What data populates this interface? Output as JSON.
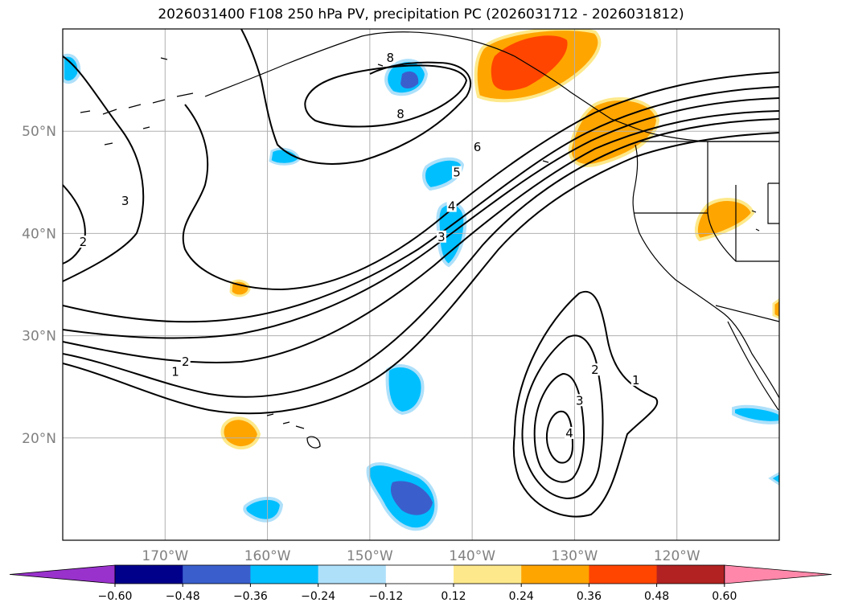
{
  "title": "2026031400 F108 250 hPa PV, precipitation PC (2026031712 - 2026031812)",
  "map": {
    "lon_range": [
      -180,
      -110
    ],
    "lat_range": [
      10,
      60
    ],
    "lat_ticks": [
      {
        "value": 20,
        "label": "20°N"
      },
      {
        "value": 30,
        "label": "30°N"
      },
      {
        "value": 40,
        "label": "40°N"
      },
      {
        "value": 50,
        "label": "50°N"
      }
    ],
    "lon_ticks": [
      {
        "value": -170,
        "label": "170°W"
      },
      {
        "value": -160,
        "label": "160°W"
      },
      {
        "value": -150,
        "label": "150°W"
      },
      {
        "value": -140,
        "label": "140°W"
      },
      {
        "value": -130,
        "label": "130°W"
      },
      {
        "value": -120,
        "label": "120°W"
      }
    ],
    "grid": true,
    "contour_field": "250 hPa PV",
    "contour_labels": [
      {
        "text": "8",
        "lon": -148,
        "lat": 57
      },
      {
        "text": "8",
        "lon": -147,
        "lat": 51.5
      },
      {
        "text": "6",
        "lon": -139.5,
        "lat": 48.3
      },
      {
        "text": "5",
        "lon": -141.5,
        "lat": 45.8
      },
      {
        "text": "4",
        "lon": -142,
        "lat": 42.5
      },
      {
        "text": "3",
        "lon": -143,
        "lat": 39.5
      },
      {
        "text": "3",
        "lon": -173.9,
        "lat": 43
      },
      {
        "text": "2",
        "lon": -178,
        "lat": 39
      },
      {
        "text": "2",
        "lon": -168,
        "lat": 27.3
      },
      {
        "text": "1",
        "lon": -169,
        "lat": 26.3
      },
      {
        "text": "2",
        "lon": -128,
        "lat": 26.5
      },
      {
        "text": "3",
        "lon": -129.5,
        "lat": 23.5
      },
      {
        "text": "4",
        "lon": -130.5,
        "lat": 20.3
      },
      {
        "text": "1",
        "lon": -124,
        "lat": 25.5
      }
    ],
    "shaded_regions": [
      {
        "name": "alaska-panhandle",
        "level": 0.36
      },
      {
        "name": "pacific-northwest",
        "level": 0.24
      },
      {
        "name": "great-basin",
        "level": 0.24
      },
      {
        "name": "hawaii-north",
        "level": 0.24
      },
      {
        "name": "gulf-alaska",
        "level": -0.36
      },
      {
        "name": "central-pacific-north",
        "level": -0.24
      },
      {
        "name": "trough-axis",
        "level": -0.24
      },
      {
        "name": "subtropics",
        "level": -0.24
      },
      {
        "name": "south-pacific-a",
        "level": -0.36
      },
      {
        "name": "south-pacific-b",
        "level": -0.24
      },
      {
        "name": "baja",
        "level": -0.24
      }
    ]
  },
  "colorbar": {
    "levels": [
      -0.6,
      -0.48,
      -0.36,
      -0.24,
      -0.12,
      0.12,
      0.24,
      0.36,
      0.48,
      0.6
    ],
    "labels": [
      "−0.60",
      "−0.48",
      "−0.36",
      "−0.24",
      "−0.12",
      "0.12",
      "0.24",
      "0.36",
      "0.48",
      "0.60"
    ],
    "colors": [
      "#9932cc",
      "#00008b",
      "#3a5fcd",
      "#00bfff",
      "#aee0fa",
      "#ffffff",
      "#fde98b",
      "#ffa500",
      "#ff4500",
      "#b22222",
      "#ff88aa"
    ]
  }
}
